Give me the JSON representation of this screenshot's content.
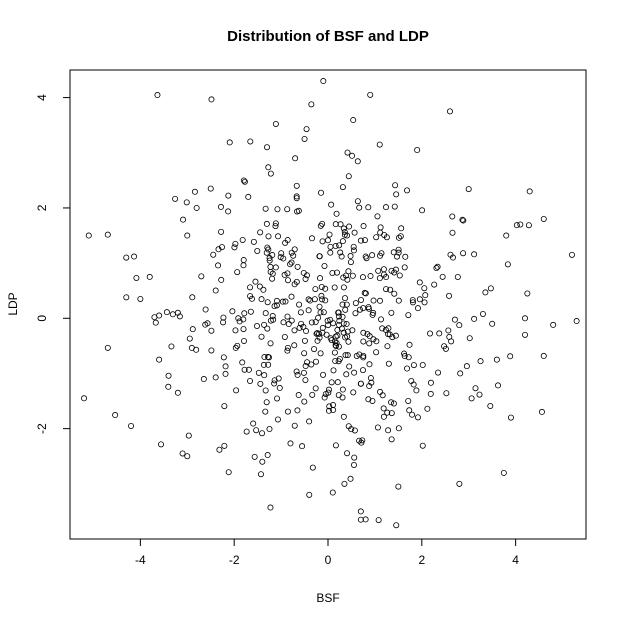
{
  "chart_data": {
    "type": "scatter",
    "title": "Distribution of BSF and LDP",
    "xlabel": "BSF",
    "ylabel": "LDP",
    "xlim": [
      -5.5,
      5.5
    ],
    "ylim": [
      -4.0,
      4.5
    ],
    "xticks": [
      -4,
      -2,
      0,
      2,
      4
    ],
    "yticks": [
      -2,
      0,
      2,
      4
    ],
    "grid": false,
    "seed": 20240517,
    "n_points": 540,
    "center_x": 0.0,
    "center_y": 0.0,
    "sd_x": 1.55,
    "sd_y": 1.25,
    "points": [
      {
        "x": -5.1,
        "y": 1.5
      },
      {
        "x": -5.2,
        "y": -1.45
      },
      {
        "x": -4.3,
        "y": 1.1
      },
      {
        "x": -4.3,
        "y": 0.38
      },
      {
        "x": -4.0,
        "y": 0.35
      },
      {
        "x": -3.8,
        "y": 0.75
      },
      {
        "x": -0.1,
        "y": 4.3
      },
      {
        "x": 0.9,
        "y": 4.05
      },
      {
        "x": 2.6,
        "y": 3.75
      },
      {
        "x": -1.3,
        "y": 3.1
      },
      {
        "x": 1.9,
        "y": 3.05
      },
      {
        "x": -0.5,
        "y": 3.25
      },
      {
        "x": -0.7,
        "y": 2.9
      },
      {
        "x": 4.3,
        "y": 2.3
      },
      {
        "x": 4.6,
        "y": 1.8
      },
      {
        "x": 4.1,
        "y": 1.7
      },
      {
        "x": 3.8,
        "y": 1.5
      },
      {
        "x": 5.2,
        "y": 1.15
      },
      {
        "x": 5.3,
        "y": -0.05
      },
      {
        "x": 4.8,
        "y": -0.12
      },
      {
        "x": 4.2,
        "y": -0.3
      },
      {
        "x": 4.2,
        "y": 0.0
      },
      {
        "x": 4.25,
        "y": 0.45
      },
      {
        "x": 3.5,
        "y": -0.1
      },
      {
        "x": 3.6,
        "y": -0.75
      },
      {
        "x": 3.9,
        "y": -1.8
      },
      {
        "x": 2.8,
        "y": -3.0
      },
      {
        "x": 0.7,
        "y": -3.5
      },
      {
        "x": 0.7,
        "y": -3.65
      },
      {
        "x": 0.35,
        "y": -3.0
      },
      {
        "x": -0.4,
        "y": -3.2
      },
      {
        "x": 1.5,
        "y": -3.05
      },
      {
        "x": -3.1,
        "y": -2.45
      },
      {
        "x": -3.0,
        "y": -2.5
      },
      {
        "x": -3.2,
        "y": -1.35
      },
      {
        "x": -3.6,
        "y": -0.75
      },
      {
        "x": -3.6,
        "y": 0.05
      },
      {
        "x": -3.7,
        "y": 0.02
      },
      {
        "x": -3.2,
        "y": 0.1
      },
      {
        "x": -3.0,
        "y": 1.5
      },
      {
        "x": -2.5,
        "y": 2.35
      },
      {
        "x": -2.8,
        "y": 2.0
      },
      {
        "x": -1.7,
        "y": 2.2
      },
      {
        "x": -1.4,
        "y": -2.6
      }
    ]
  }
}
